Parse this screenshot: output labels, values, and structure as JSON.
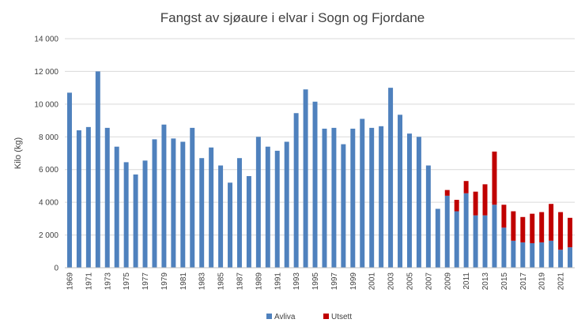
{
  "chart_data": {
    "type": "bar",
    "stacked": true,
    "title": "Fangst av sjøaure i elvar i Sogn og Fjordane",
    "ylabel": "Kilo (kg)",
    "xlabel": "",
    "ylim": [
      0,
      14000
    ],
    "yticks": [
      0,
      2000,
      4000,
      6000,
      8000,
      10000,
      12000,
      14000
    ],
    "ytick_labels": [
      "0",
      "2 000",
      "4 000",
      "6 000",
      "8 000",
      "10 000",
      "12 000",
      "14 000"
    ],
    "grid": true,
    "legend_position": "bottom",
    "categories": [
      1969,
      1970,
      1971,
      1972,
      1973,
      1974,
      1975,
      1976,
      1977,
      1978,
      1979,
      1980,
      1981,
      1982,
      1983,
      1984,
      1985,
      1986,
      1987,
      1988,
      1989,
      1990,
      1991,
      1992,
      1993,
      1994,
      1995,
      1996,
      1997,
      1998,
      1999,
      2000,
      2001,
      2002,
      2003,
      2004,
      2005,
      2006,
      2007,
      2008,
      2009,
      2010,
      2011,
      2012,
      2013,
      2014,
      2015,
      2016,
      2017,
      2018,
      2019,
      2020,
      2021,
      2022
    ],
    "xtick_labels": [
      "1969",
      "1971",
      "1973",
      "1975",
      "1977",
      "1979",
      "1981",
      "1983",
      "1985",
      "1987",
      "1989",
      "1991",
      "1993",
      "1995",
      "1997",
      "1999",
      "2001",
      "2003",
      "2005",
      "2007",
      "2009",
      "2011",
      "2013",
      "2015",
      "2017",
      "2019",
      "2021"
    ],
    "series": [
      {
        "name": "Avliva",
        "color": "#4f81bd",
        "values": [
          10700,
          8400,
          8600,
          12000,
          8550,
          7400,
          6450,
          5700,
          6550,
          7850,
          8750,
          7900,
          7700,
          8550,
          6700,
          7350,
          6250,
          5200,
          6700,
          5600,
          8000,
          7400,
          7150,
          7700,
          9450,
          10900,
          10150,
          8500,
          8550,
          7550,
          8500,
          9100,
          8550,
          8650,
          11000,
          9350,
          8200,
          8000,
          6250,
          3600,
          4400,
          3450,
          4550,
          3200,
          3200,
          3850,
          2450,
          1650,
          1550,
          1500,
          1550,
          1650,
          1100,
          1250
        ]
      },
      {
        "name": "Utsett",
        "color": "#c00000",
        "values": [
          0,
          0,
          0,
          0,
          0,
          0,
          0,
          0,
          0,
          0,
          0,
          0,
          0,
          0,
          0,
          0,
          0,
          0,
          0,
          0,
          0,
          0,
          0,
          0,
          0,
          0,
          0,
          0,
          0,
          0,
          0,
          0,
          0,
          0,
          0,
          0,
          0,
          0,
          0,
          0,
          350,
          700,
          750,
          1450,
          1900,
          3250,
          1400,
          1800,
          1550,
          1800,
          1850,
          2250,
          2300,
          1800
        ]
      }
    ]
  }
}
